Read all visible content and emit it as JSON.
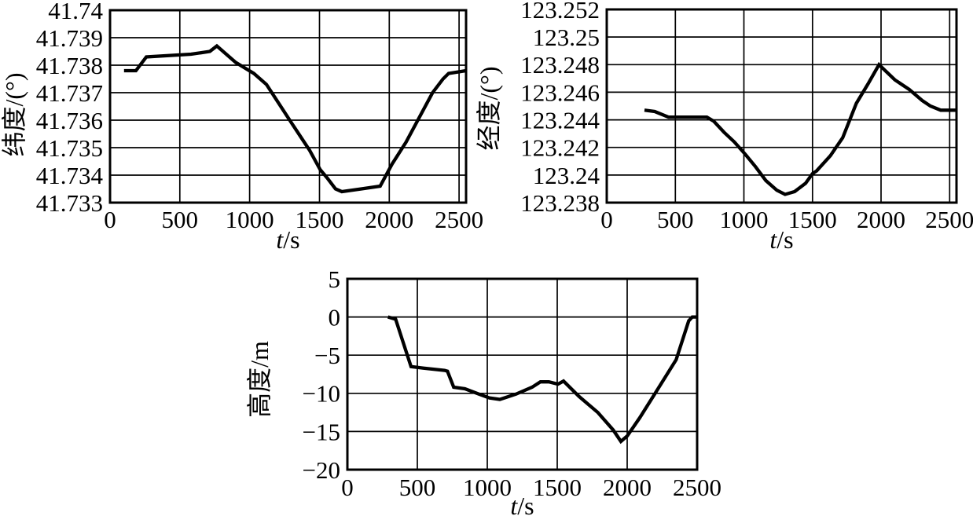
{
  "figure": {
    "background": "#ffffff",
    "line_color": "#000000",
    "text_color": "#000000",
    "grid_color": "#000000"
  },
  "chart_data": [
    {
      "id": "latitude",
      "type": "line",
      "title": "",
      "xlabel": "t/s",
      "ylabel": "纬度/(°)",
      "xlim": [
        0,
        2550
      ],
      "ylim": [
        41.733,
        41.74
      ],
      "grid": true,
      "legend": "none",
      "xticks": [
        0,
        500,
        1000,
        1500,
        2000,
        2500
      ],
      "xtick_labels": [
        "0",
        "500",
        "1000",
        "1500",
        "2000",
        "2500"
      ],
      "yticks": [
        41.733,
        41.734,
        41.735,
        41.736,
        41.737,
        41.738,
        41.739,
        41.74
      ],
      "ytick_labels": [
        "41.733",
        "41.734",
        "41.735",
        "41.736",
        "41.737",
        "41.738",
        "41.739",
        "41.74"
      ],
      "series": [
        {
          "name": "latitude",
          "x": [
            100,
            185,
            260,
            580,
            715,
            765,
            900,
            1030,
            1120,
            1300,
            1430,
            1505,
            1555,
            1615,
            1660,
            1800,
            1935,
            2020,
            2120,
            2215,
            2310,
            2385,
            2425,
            2550
          ],
          "y": [
            41.7378,
            41.7378,
            41.7383,
            41.7384,
            41.7385,
            41.7387,
            41.7381,
            41.7377,
            41.7373,
            41.7359,
            41.7349,
            41.7342,
            41.7339,
            41.7335,
            41.7334,
            41.7335,
            41.7336,
            41.7344,
            41.7352,
            41.7361,
            41.737,
            41.7375,
            41.7377,
            41.7378
          ]
        }
      ]
    },
    {
      "id": "longitude",
      "type": "line",
      "title": "",
      "xlabel": "t/s",
      "ylabel": "经度/(°)",
      "xlim": [
        0,
        2550
      ],
      "ylim": [
        123.238,
        123.252
      ],
      "grid": true,
      "legend": "none",
      "xticks": [
        0,
        500,
        1000,
        1500,
        2000,
        2500
      ],
      "xtick_labels": [
        "0",
        "500",
        "1000",
        "1500",
        "2000",
        "2500"
      ],
      "yticks": [
        123.238,
        123.24,
        123.242,
        123.244,
        123.246,
        123.248,
        123.25,
        123.252
      ],
      "ytick_labels": [
        "123.238",
        "123.24",
        "123.242",
        "123.244",
        "123.246",
        "123.248",
        "123.25",
        "123.252"
      ],
      "series": [
        {
          "name": "longitude",
          "x": [
            275,
            350,
            450,
            730,
            780,
            855,
            930,
            1010,
            1085,
            1160,
            1240,
            1300,
            1370,
            1450,
            1500,
            1530,
            1630,
            1720,
            1820,
            1905,
            1985,
            2100,
            2205,
            2300,
            2360,
            2435,
            2550
          ],
          "y": [
            123.2447,
            123.2446,
            123.2442,
            123.2442,
            123.2439,
            123.2431,
            123.2424,
            123.2415,
            123.2406,
            123.2396,
            123.2389,
            123.2386,
            123.2388,
            123.2394,
            123.2401,
            123.2403,
            123.2414,
            123.2427,
            123.2452,
            123.2466,
            123.248,
            123.2469,
            123.2462,
            123.2454,
            123.245,
            123.2447,
            123.2447
          ]
        }
      ]
    },
    {
      "id": "altitude",
      "type": "line",
      "title": "",
      "xlabel": "t/s",
      "ylabel": "高度/m",
      "xlim": [
        0,
        2500
      ],
      "ylim": [
        -20,
        5
      ],
      "grid": true,
      "legend": "none",
      "xticks": [
        0,
        500,
        1000,
        1500,
        2000,
        2500
      ],
      "xtick_labels": [
        "0",
        "500",
        "1000",
        "1500",
        "2000",
        "2500"
      ],
      "yticks": [
        -20,
        -15,
        -10,
        -5,
        0,
        5
      ],
      "ytick_labels": [
        "−20",
        "−15",
        "−10",
        "−5",
        "0",
        "5"
      ],
      "series": [
        {
          "name": "altitude",
          "x": [
            290,
            345,
            455,
            545,
            695,
            715,
            760,
            840,
            940,
            1015,
            1090,
            1205,
            1320,
            1380,
            1440,
            1505,
            1545,
            1655,
            1790,
            1900,
            1955,
            2000,
            2090,
            2220,
            2350,
            2440,
            2465,
            2500
          ],
          "y": [
            0,
            -0.3,
            -6.5,
            -6.7,
            -7,
            -7.1,
            -9.2,
            -9.4,
            -10.1,
            -10.6,
            -10.8,
            -10.1,
            -9.2,
            -8.5,
            -8.5,
            -8.8,
            -8.4,
            -10.4,
            -12.5,
            -14.8,
            -16.3,
            -15.6,
            -13.2,
            -9.4,
            -5.6,
            -0.5,
            0,
            0
          ]
        }
      ]
    }
  ]
}
